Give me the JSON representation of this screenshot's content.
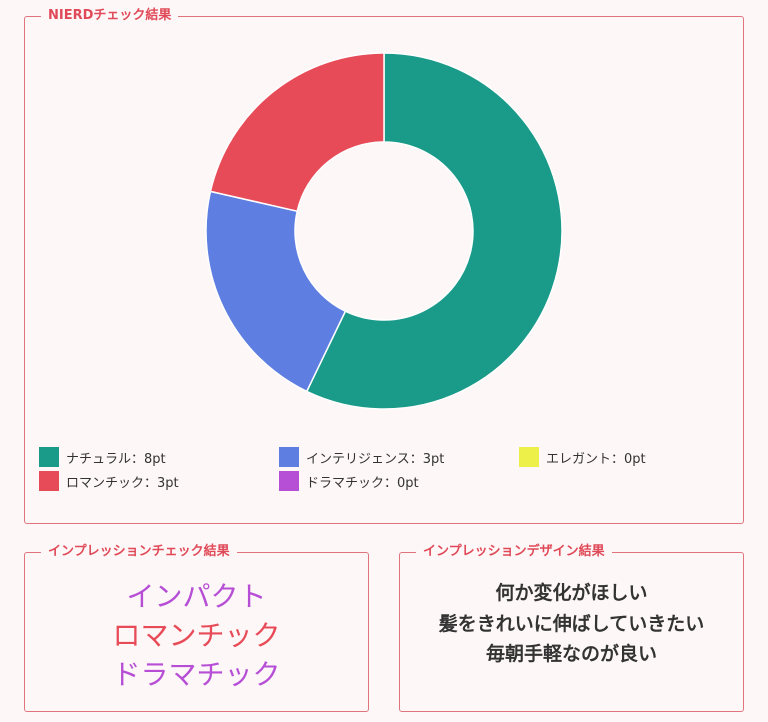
{
  "nierd": {
    "title": "NIERDチェック結果"
  },
  "chart_data": {
    "type": "pie",
    "donut": true,
    "categories": [
      "ナチュラル",
      "インテリジェンス",
      "エレガント",
      "ロマンチック",
      "ドラマチック"
    ],
    "values": [
      8,
      3,
      0,
      3,
      0
    ],
    "colors": [
      "#1a9a88",
      "#5f7ee2",
      "#eef04a",
      "#e84b58",
      "#b64fd6"
    ],
    "legend_labels": [
      "ナチュラル：8pt",
      "インテリジェンス：3pt",
      "エレガント：0pt",
      "ロマンチック：3pt",
      "ドラマチック：0pt"
    ],
    "legend_placement": "bottom"
  },
  "impression": {
    "title": "インプレッションチェック結果",
    "items": [
      {
        "label": "インパクト",
        "color": "#b64fd6"
      },
      {
        "label": "ロマンチック",
        "color": "#e84b58"
      },
      {
        "label": "ドラマチック",
        "color": "#b64fd6"
      }
    ]
  },
  "design": {
    "title": "インプレッションデザイン結果",
    "lines": [
      "何か変化がほしい",
      "髪をきれいに伸ばしていきたい",
      "毎朝手軽なのが良い"
    ]
  }
}
